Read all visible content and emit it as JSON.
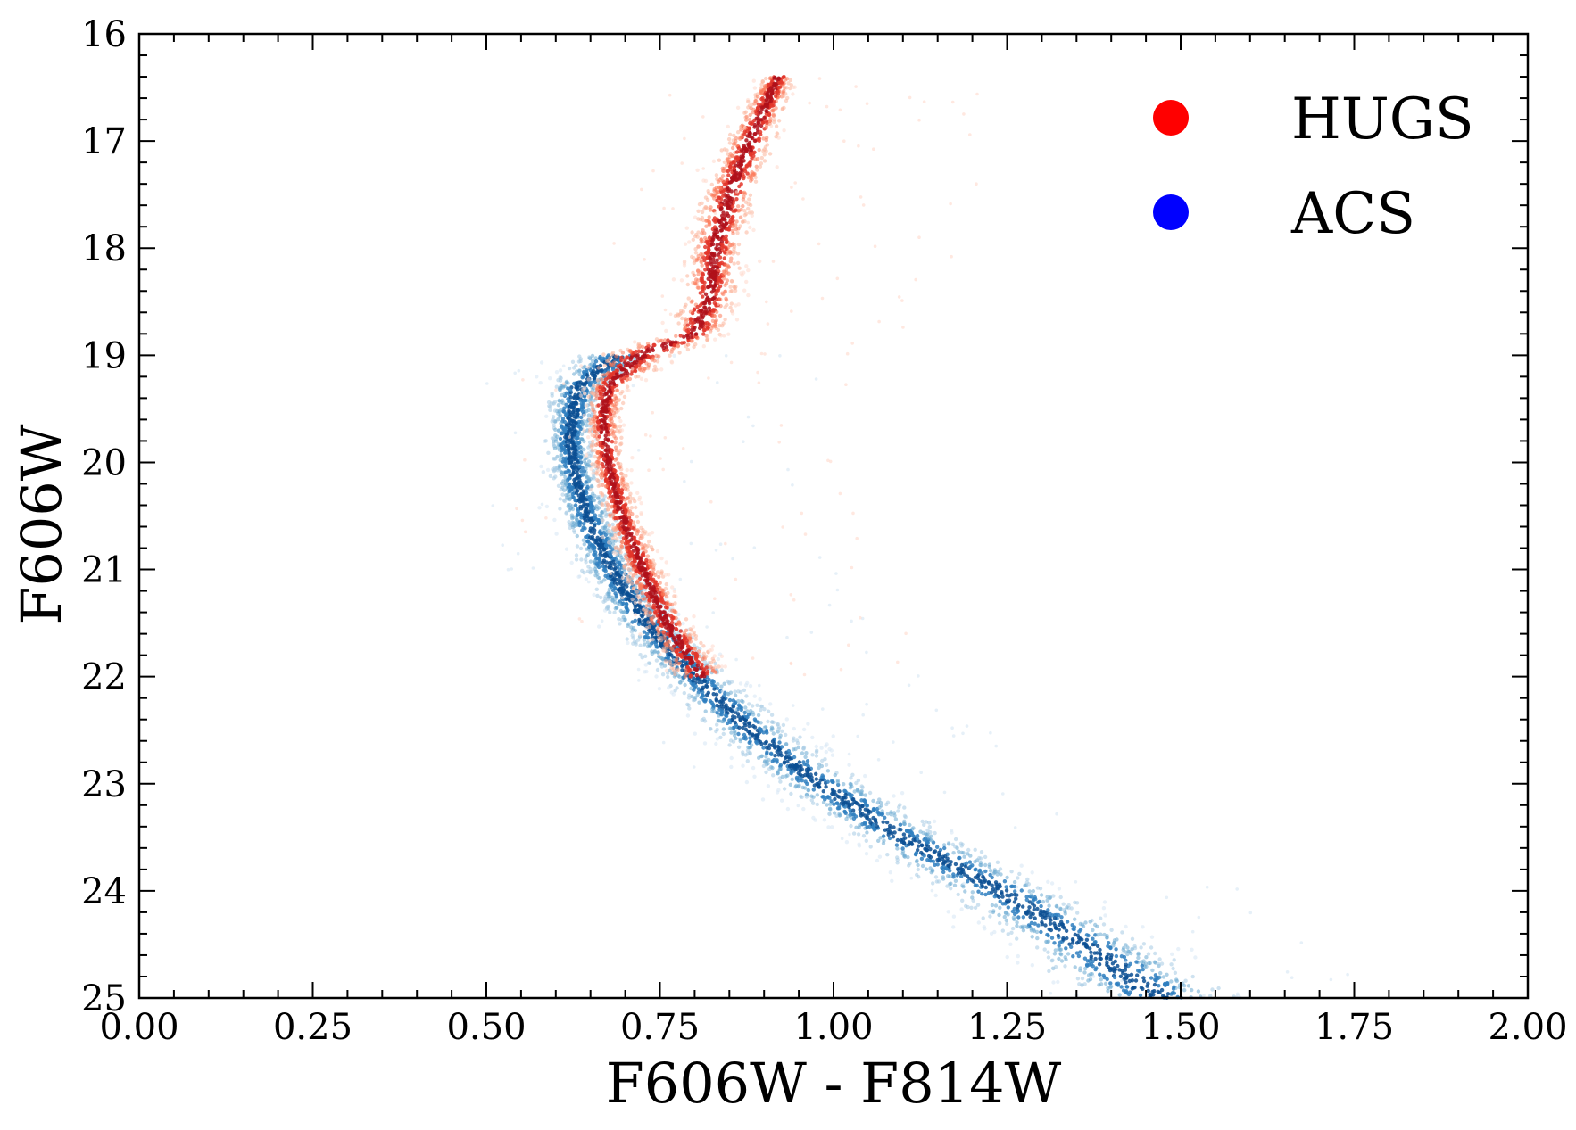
{
  "chart_data": {
    "type": "scatter",
    "title": "",
    "xlabel": "F606W - F814W",
    "ylabel": "F606W",
    "xlim": [
      0.0,
      2.0
    ],
    "ylim": [
      16,
      25
    ],
    "y_inverted": true,
    "grid": false,
    "legend_position": "top-right",
    "x_tick_labels": [
      "0.00",
      "0.25",
      "0.50",
      "0.75",
      "1.00",
      "1.25",
      "1.50",
      "1.75",
      "2.00"
    ],
    "y_tick_labels": [
      "16",
      "17",
      "18",
      "19",
      "20",
      "21",
      "22",
      "23",
      "24",
      "25"
    ],
    "series": [
      {
        "name": "HUGS",
        "color": "#ff0000",
        "sequence": [
          {
            "mag": 16.4,
            "color": 0.92,
            "spread": 0.012
          },
          {
            "mag": 17.0,
            "color": 0.88,
            "spread": 0.018
          },
          {
            "mag": 17.5,
            "color": 0.85,
            "spread": 0.02
          },
          {
            "mag": 18.0,
            "color": 0.83,
            "spread": 0.02
          },
          {
            "mag": 18.5,
            "color": 0.82,
            "spread": 0.02
          },
          {
            "mag": 18.8,
            "color": 0.8,
            "spread": 0.02
          },
          {
            "mag": 19.0,
            "color": 0.72,
            "spread": 0.03
          },
          {
            "mag": 19.3,
            "color": 0.675,
            "spread": 0.014
          },
          {
            "mag": 19.6,
            "color": 0.668,
            "spread": 0.012
          },
          {
            "mag": 20.0,
            "color": 0.675,
            "spread": 0.012
          },
          {
            "mag": 20.5,
            "color": 0.695,
            "spread": 0.013
          },
          {
            "mag": 21.0,
            "color": 0.725,
            "spread": 0.014
          },
          {
            "mag": 21.5,
            "color": 0.76,
            "spread": 0.016
          },
          {
            "mag": 22.0,
            "color": 0.81,
            "spread": 0.02
          }
        ]
      },
      {
        "name": "ACS",
        "color": "#0000ff",
        "sequence": [
          {
            "mag": 19.0,
            "color": 0.69,
            "spread": 0.03
          },
          {
            "mag": 19.3,
            "color": 0.63,
            "spread": 0.02
          },
          {
            "mag": 19.8,
            "color": 0.62,
            "spread": 0.018
          },
          {
            "mag": 20.2,
            "color": 0.63,
            "spread": 0.018
          },
          {
            "mag": 20.6,
            "color": 0.65,
            "spread": 0.02
          },
          {
            "mag": 21.0,
            "color": 0.68,
            "spread": 0.022
          },
          {
            "mag": 21.5,
            "color": 0.73,
            "spread": 0.024
          },
          {
            "mag": 22.0,
            "color": 0.8,
            "spread": 0.026
          },
          {
            "mag": 22.5,
            "color": 0.88,
            "spread": 0.03
          },
          {
            "mag": 23.0,
            "color": 0.98,
            "spread": 0.034
          },
          {
            "mag": 23.5,
            "color": 1.1,
            "spread": 0.038
          },
          {
            "mag": 24.0,
            "color": 1.24,
            "spread": 0.044
          },
          {
            "mag": 24.5,
            "color": 1.36,
            "spread": 0.05
          },
          {
            "mag": 25.0,
            "color": 1.47,
            "spread": 0.055
          }
        ]
      }
    ]
  }
}
